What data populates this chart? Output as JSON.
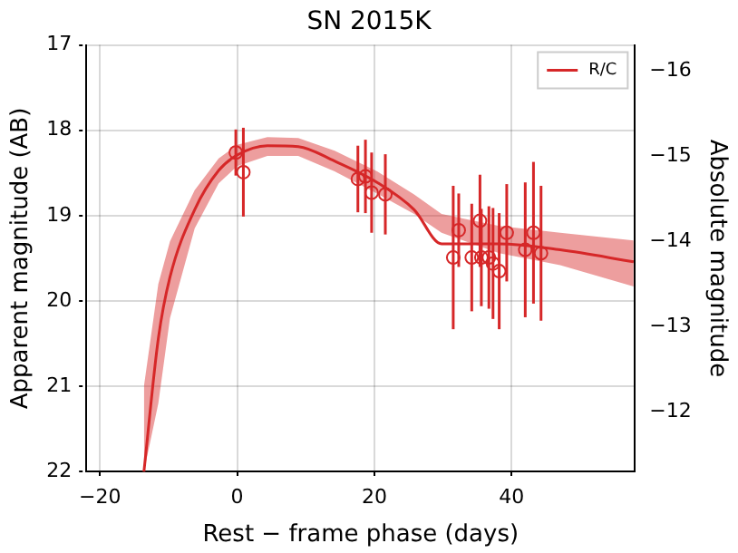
{
  "chart_data": {
    "type": "line",
    "title": "SN 2015K",
    "xlabel": "Rest − frame phase (days)",
    "ylabel": "Apparent magnitude (AB)",
    "y2label": "Absolute magnitude",
    "xlim": [
      -22,
      58
    ],
    "xticks": [
      -20,
      0,
      20,
      40
    ],
    "ylim": [
      22,
      17
    ],
    "yticks": [
      17,
      18,
      19,
      20,
      21,
      22
    ],
    "y2lim": [
      -11.3,
      -16.3
    ],
    "y2ticks": [
      -16,
      -15,
      -14,
      -13,
      -12
    ],
    "grid": true,
    "legend": "top right",
    "series": [
      {
        "name": "R/C",
        "color": "#d62728",
        "marker": "none",
        "line_style": "solid",
        "x": [
          -13.6,
          -11.5,
          -9.8,
          -6.2,
          -2.7,
          0,
          4.4,
          8.9,
          14.2,
          20.4,
          25.8,
          29.8,
          38.2,
          47.1,
          57.8
        ],
        "values": [
          22,
          20.44,
          19.72,
          18.93,
          18.47,
          18.29,
          18.18,
          18.19,
          18.36,
          18.61,
          18.93,
          19.33,
          19.33,
          19.4,
          19.54
        ],
        "lower": [
          21.0,
          19.8,
          19.3,
          18.7,
          18.33,
          18.17,
          18.08,
          18.09,
          18.24,
          18.48,
          18.75,
          18.98,
          19.12,
          19.2,
          19.29
        ],
        "upper": [
          22,
          21.2,
          20.2,
          19.15,
          18.62,
          18.42,
          18.3,
          18.3,
          18.48,
          18.74,
          18.98,
          19.2,
          19.44,
          19.58,
          19.83
        ]
      },
      {
        "type": "scatter",
        "color": "#d62728",
        "marker": "circle",
        "x": [
          -0.2,
          0.9,
          17.6,
          18.7,
          19.6,
          20.3,
          21.6,
          31.5,
          32.3,
          34.2,
          35.4,
          35.6,
          36.7,
          37.3,
          38.2,
          39.3,
          42.0,
          43.2,
          44.3
        ],
        "values": [
          18.26,
          18.49,
          18.57,
          18.54,
          18.73,
          null,
          18.75,
          19.49,
          19.17,
          19.49,
          19.06,
          19.49,
          19.49,
          19.56,
          19.65,
          19.2,
          19.4,
          19.2,
          19.44
        ],
        "errors": [
          0.27,
          0.52,
          0.39,
          0.43,
          0.47,
          null,
          0.47,
          0.84,
          0.43,
          0.63,
          0.54,
          0.57,
          0.6,
          0.65,
          0.68,
          0.57,
          0.79,
          0.83,
          0.79
        ]
      }
    ]
  }
}
